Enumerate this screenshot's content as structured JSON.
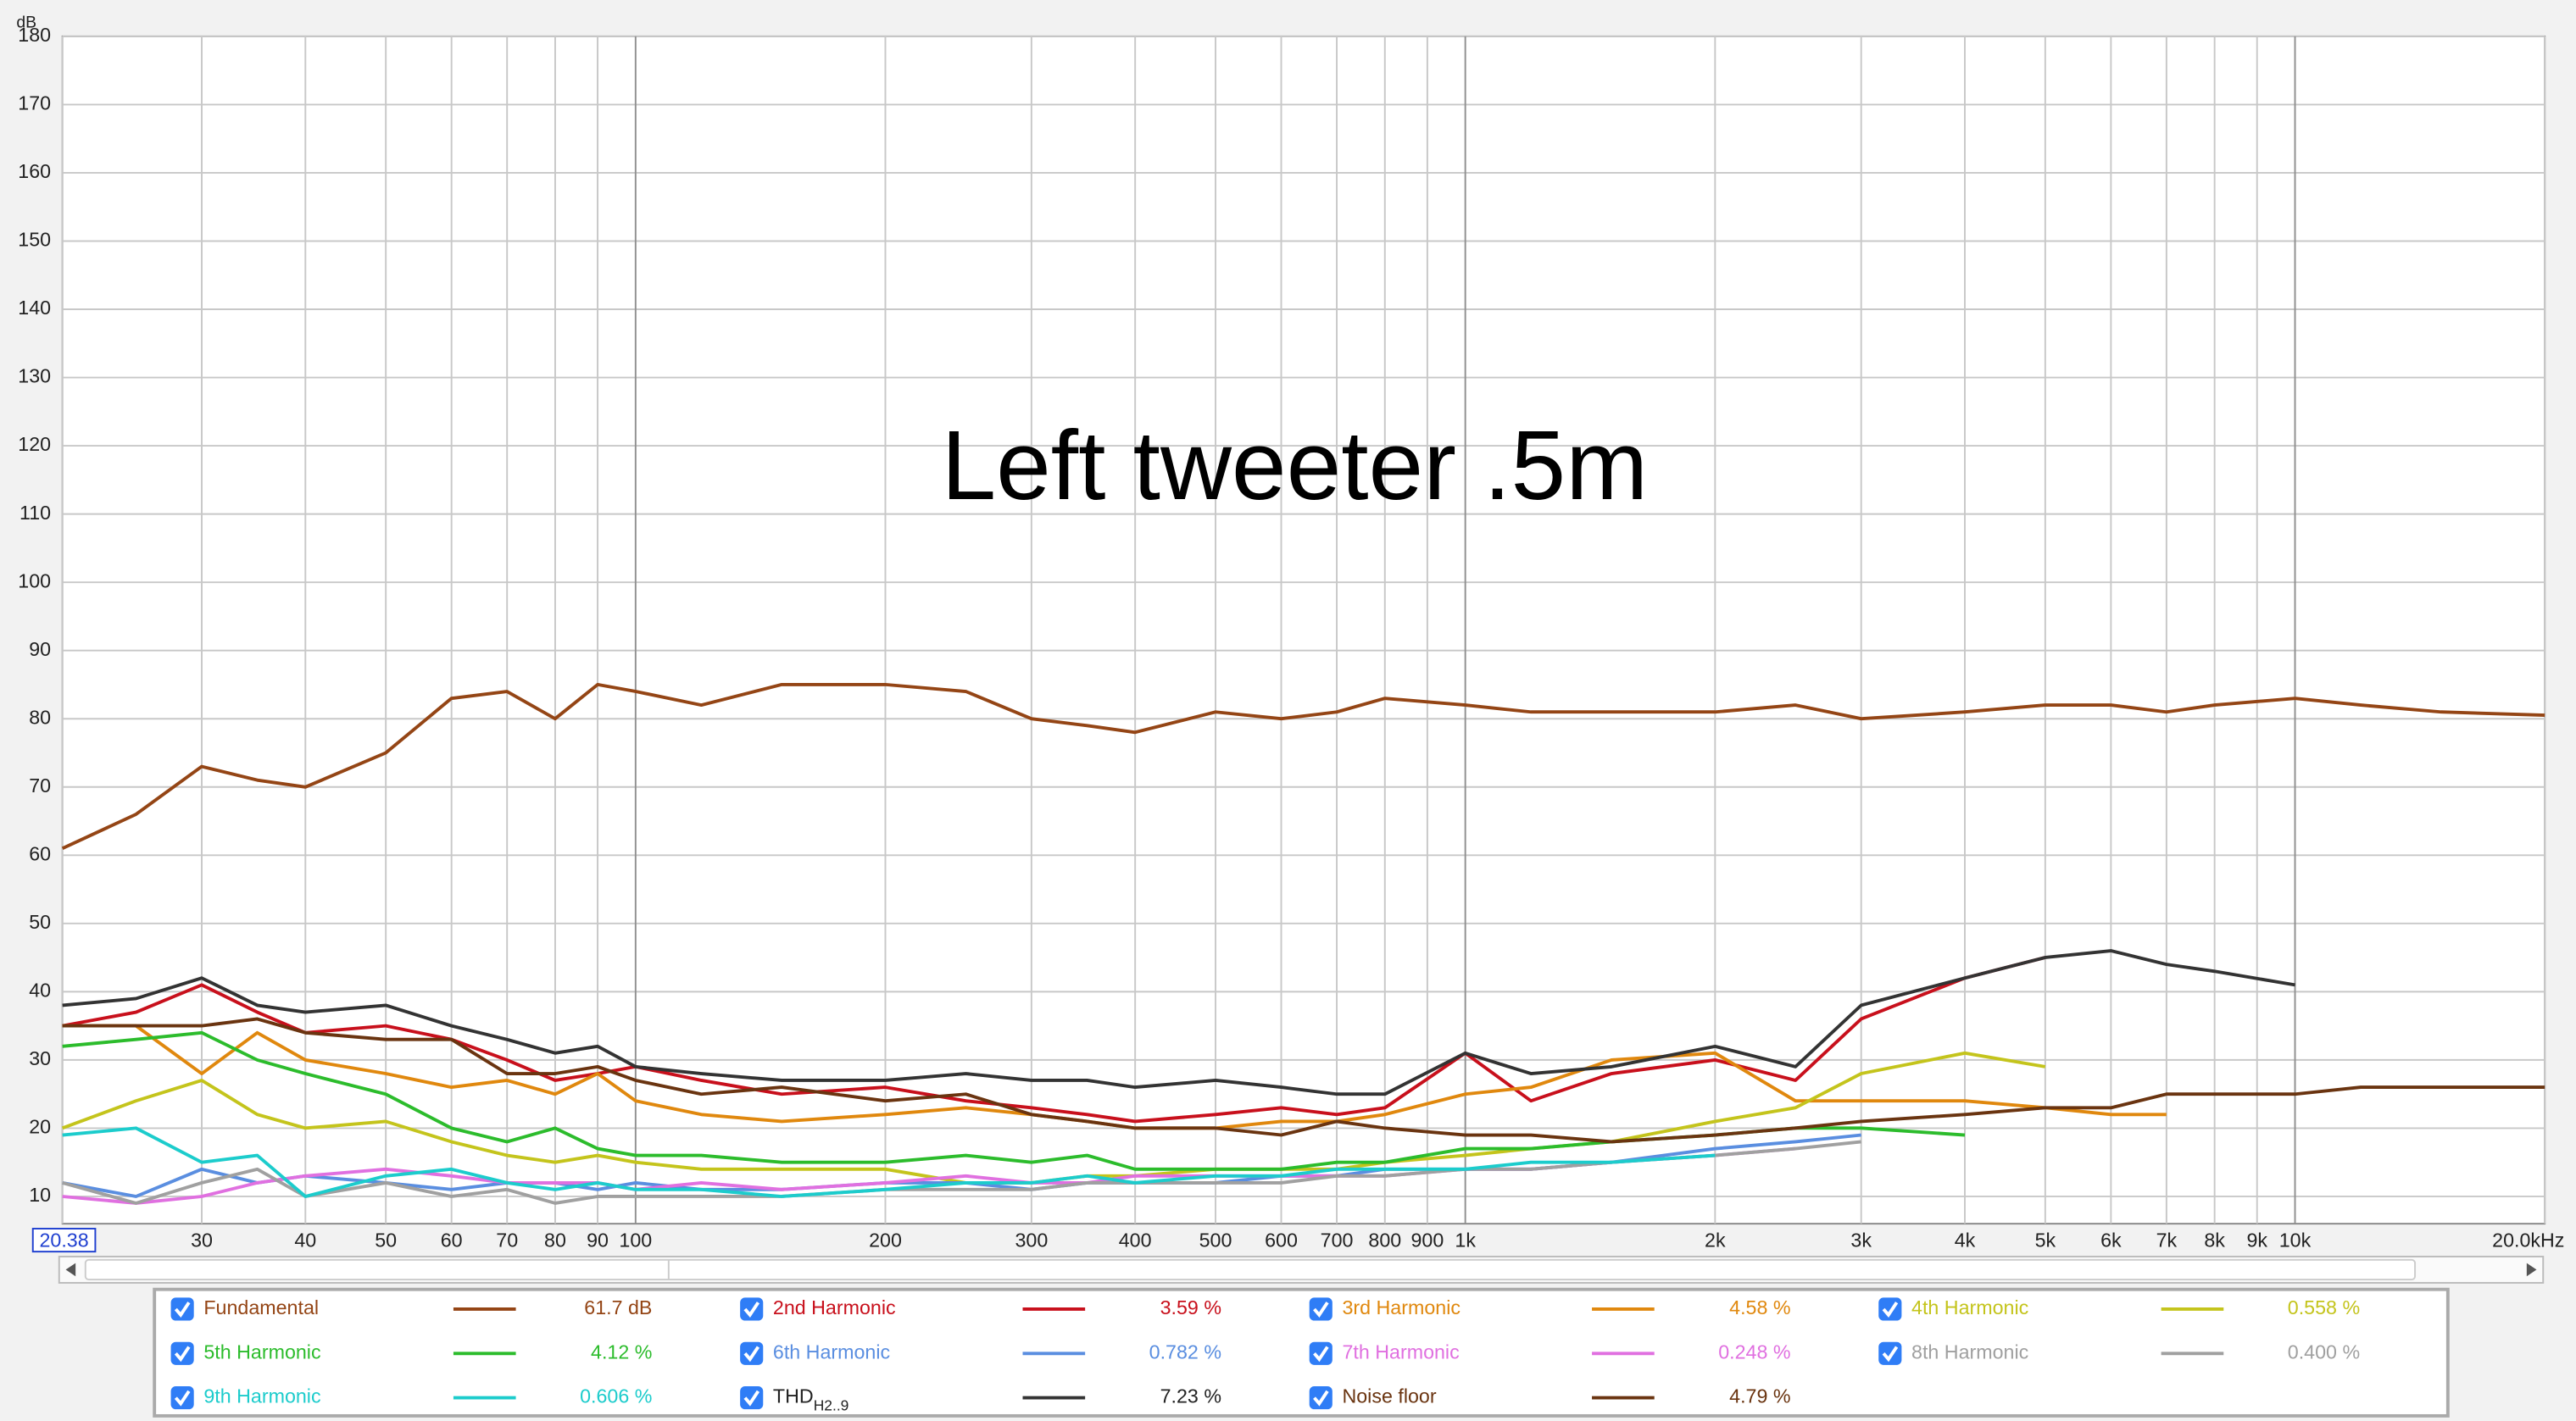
{
  "chart_data": {
    "type": "line",
    "title": "Left tweeter .5m",
    "y_unit": "dB",
    "log_x": true,
    "grid": true,
    "x": [
      20.38,
      25,
      30,
      35,
      40,
      50,
      60,
      70,
      80,
      90,
      100,
      120,
      150,
      200,
      250,
      300,
      350,
      400,
      500,
      600,
      700,
      800,
      1000,
      1200,
      1500,
      2000,
      2500,
      3000,
      4000,
      5000,
      6000,
      7000,
      8000,
      10000,
      12000,
      15000,
      20000
    ],
    "xlim": [
      20.38,
      20000
    ],
    "xticks": [
      20.38,
      30,
      40,
      50,
      60,
      70,
      80,
      90,
      100,
      200,
      300,
      400,
      500,
      600,
      700,
      800,
      900,
      {
        "value": 1000,
        "label": "1k"
      },
      {
        "value": 2000,
        "label": "2k"
      },
      {
        "value": 3000,
        "label": "3k"
      },
      {
        "value": 4000,
        "label": "4k"
      },
      {
        "value": 5000,
        "label": "5k"
      },
      {
        "value": 6000,
        "label": "6k"
      },
      {
        "value": 7000,
        "label": "7k"
      },
      {
        "value": 8000,
        "label": "8k"
      },
      {
        "value": 9000,
        "label": "9k"
      },
      {
        "value": 10000,
        "label": "10k"
      },
      {
        "value": 20000,
        "label": "20.0kHz"
      }
    ],
    "ylim": [
      6,
      180
    ],
    "yticks": [
      10,
      20,
      30,
      40,
      50,
      60,
      70,
      80,
      90,
      100,
      110,
      120,
      130,
      140,
      150,
      160,
      170,
      180
    ],
    "series": [
      {
        "name": "Fundamental",
        "color": "#944515",
        "readout": "61.7 dB",
        "values": [
          61,
          66,
          73,
          71,
          70,
          75,
          83,
          84,
          80,
          85,
          84,
          82,
          85,
          85,
          84,
          80,
          79,
          78,
          81,
          80,
          81,
          83,
          82,
          81,
          81,
          81,
          82,
          80,
          81,
          82,
          82,
          81,
          82,
          83,
          82,
          81,
          80.5
        ]
      },
      {
        "name": "2nd Harmonic",
        "color": "#c8101c",
        "readout": "3.59 %",
        "values": [
          35,
          37,
          41,
          37,
          34,
          35,
          33,
          30,
          27,
          28,
          29,
          27,
          25,
          26,
          24,
          23,
          22,
          21,
          22,
          23,
          22,
          23,
          31,
          24,
          28,
          30,
          27,
          36,
          42,
          45,
          null,
          null,
          null,
          null,
          null,
          null,
          null
        ]
      },
      {
        "name": "3rd Harmonic",
        "color": "#e0880e",
        "readout": "4.58 %",
        "values": [
          35,
          35,
          28,
          34,
          30,
          28,
          26,
          27,
          25,
          28,
          24,
          22,
          21,
          22,
          23,
          22,
          21,
          20,
          20,
          21,
          21,
          22,
          25,
          26,
          30,
          31,
          24,
          24,
          24,
          23,
          22,
          22,
          null,
          null,
          null,
          null,
          null
        ]
      },
      {
        "name": "4th Harmonic",
        "color": "#c4c41c",
        "readout": "0.558 %",
        "values": [
          20,
          24,
          27,
          22,
          20,
          21,
          18,
          16,
          15,
          16,
          15,
          14,
          14,
          14,
          12,
          12,
          13,
          13,
          14,
          14,
          14,
          15,
          16,
          17,
          18,
          21,
          23,
          28,
          31,
          29,
          null,
          null,
          null,
          null,
          null,
          null,
          null
        ]
      },
      {
        "name": "5th Harmonic",
        "color": "#2cbc2c",
        "readout": "4.12 %",
        "values": [
          32,
          33,
          34,
          30,
          28,
          25,
          20,
          18,
          20,
          17,
          16,
          16,
          15,
          15,
          16,
          15,
          16,
          14,
          14,
          14,
          15,
          15,
          17,
          17,
          18,
          19,
          20,
          20,
          19,
          null,
          null,
          null,
          null,
          null,
          null,
          null,
          null
        ]
      },
      {
        "name": "6th Harmonic",
        "color": "#5a8ee0",
        "readout": "0.782 %",
        "values": [
          12,
          10,
          14,
          12,
          13,
          12,
          11,
          12,
          12,
          11,
          12,
          11,
          11,
          12,
          12,
          11,
          12,
          12,
          12,
          13,
          13,
          14,
          14,
          14,
          15,
          17,
          18,
          19,
          null,
          null,
          null,
          null,
          null,
          null,
          null,
          null,
          null
        ]
      },
      {
        "name": "7th Harmonic",
        "color": "#e070e0",
        "readout": "0.248 %",
        "values": [
          10,
          9,
          10,
          12,
          13,
          14,
          13,
          12,
          12,
          12,
          11,
          12,
          11,
          12,
          13,
          12,
          12,
          13,
          13,
          13,
          13,
          13,
          14,
          14,
          15,
          16,
          17,
          null,
          null,
          null,
          null,
          null,
          null,
          null,
          null,
          null,
          null
        ]
      },
      {
        "name": "8th Harmonic",
        "color": "#a0a0a0",
        "readout": "0.400 %",
        "values": [
          12,
          9,
          12,
          14,
          10,
          12,
          10,
          11,
          9,
          10,
          10,
          10,
          10,
          11,
          11,
          11,
          12,
          12,
          12,
          12,
          13,
          13,
          14,
          14,
          15,
          16,
          17,
          18,
          null,
          null,
          null,
          null,
          null,
          null,
          null,
          null,
          null
        ]
      },
      {
        "name": "9th Harmonic",
        "color": "#1ccccc",
        "readout": "0.606 %",
        "values": [
          19,
          20,
          15,
          16,
          10,
          13,
          14,
          12,
          11,
          12,
          11,
          11,
          10,
          11,
          12,
          12,
          13,
          12,
          13,
          13,
          14,
          14,
          14,
          15,
          15,
          16,
          null,
          null,
          null,
          null,
          null,
          null,
          null,
          null,
          null,
          null,
          null
        ]
      },
      {
        "name": "THD",
        "subscript": "H2..9",
        "color": "#333333",
        "readout": "7.23 %",
        "values": [
          38,
          39,
          42,
          38,
          37,
          38,
          35,
          33,
          31,
          32,
          29,
          28,
          27,
          27,
          28,
          27,
          27,
          26,
          27,
          26,
          25,
          25,
          31,
          28,
          29,
          32,
          29,
          38,
          42,
          45,
          46,
          44,
          43,
          41,
          null,
          null,
          null
        ]
      },
      {
        "name": "Noise floor",
        "color": "#6a3410",
        "readout": "4.79 %",
        "values": [
          35,
          35,
          35,
          36,
          34,
          33,
          33,
          28,
          28,
          29,
          27,
          25,
          26,
          24,
          25,
          22,
          21,
          20,
          20,
          19,
          21,
          20,
          19,
          19,
          18,
          19,
          20,
          21,
          22,
          23,
          23,
          25,
          25,
          25,
          26,
          26,
          26
        ]
      }
    ]
  }
}
